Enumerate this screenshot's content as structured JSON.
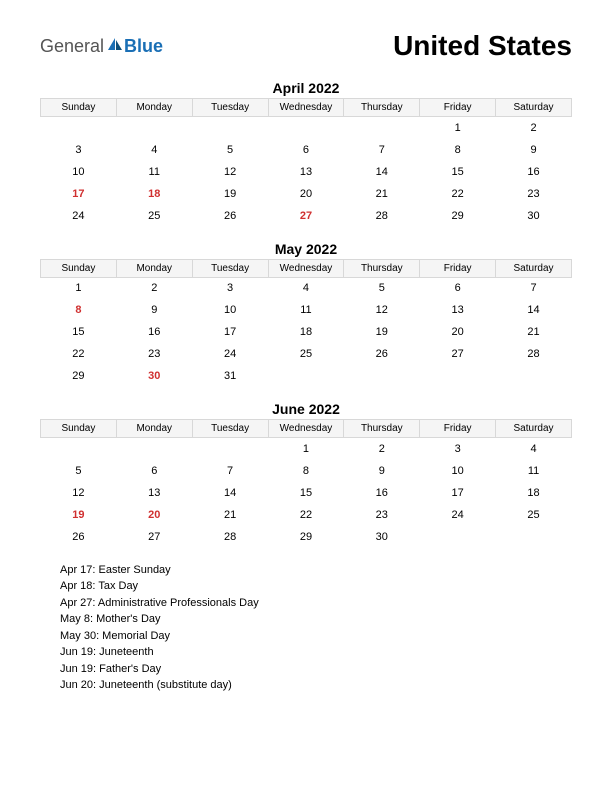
{
  "logo": {
    "general": "General",
    "blue": "Blue"
  },
  "title": "United States",
  "day_headers": [
    "Sunday",
    "Monday",
    "Tuesday",
    "Wednesday",
    "Thursday",
    "Friday",
    "Saturday"
  ],
  "colors": {
    "highlight": "#d03030",
    "header_bg": "#f5f5f5",
    "header_border": "#d8d8d8",
    "text": "#000000",
    "logo_gray": "#555555",
    "logo_blue": "#1a6fb5"
  },
  "months": [
    {
      "title": "April 2022",
      "weeks": [
        [
          "",
          "",
          "",
          "",
          "",
          "1",
          "2"
        ],
        [
          "3",
          "4",
          "5",
          "6",
          "7",
          "8",
          "9"
        ],
        [
          "10",
          "11",
          "12",
          "13",
          "14",
          "15",
          "16"
        ],
        [
          "17",
          "18",
          "19",
          "20",
          "21",
          "22",
          "23"
        ],
        [
          "24",
          "25",
          "26",
          "27",
          "28",
          "29",
          "30"
        ]
      ],
      "highlights": [
        [
          3,
          0
        ],
        [
          3,
          1
        ],
        [
          4,
          3
        ]
      ]
    },
    {
      "title": "May 2022",
      "weeks": [
        [
          "1",
          "2",
          "3",
          "4",
          "5",
          "6",
          "7"
        ],
        [
          "8",
          "9",
          "10",
          "11",
          "12",
          "13",
          "14"
        ],
        [
          "15",
          "16",
          "17",
          "18",
          "19",
          "20",
          "21"
        ],
        [
          "22",
          "23",
          "24",
          "25",
          "26",
          "27",
          "28"
        ],
        [
          "29",
          "30",
          "31",
          "",
          "",
          "",
          ""
        ]
      ],
      "highlights": [
        [
          1,
          0
        ],
        [
          4,
          1
        ]
      ]
    },
    {
      "title": "June 2022",
      "weeks": [
        [
          "",
          "",
          "",
          "1",
          "2",
          "3",
          "4"
        ],
        [
          "5",
          "6",
          "7",
          "8",
          "9",
          "10",
          "11"
        ],
        [
          "12",
          "13",
          "14",
          "15",
          "16",
          "17",
          "18"
        ],
        [
          "19",
          "20",
          "21",
          "22",
          "23",
          "24",
          "25"
        ],
        [
          "26",
          "27",
          "28",
          "29",
          "30",
          "",
          ""
        ]
      ],
      "highlights": [
        [
          3,
          0
        ],
        [
          3,
          1
        ]
      ]
    }
  ],
  "holidays": [
    "Apr 17: Easter Sunday",
    "Apr 18: Tax Day",
    "Apr 27: Administrative Professionals Day",
    "May 8: Mother's Day",
    "May 30: Memorial Day",
    "Jun 19: Juneteenth",
    " Jun 19: Father's Day",
    "Jun 20: Juneteenth (substitute day)"
  ]
}
